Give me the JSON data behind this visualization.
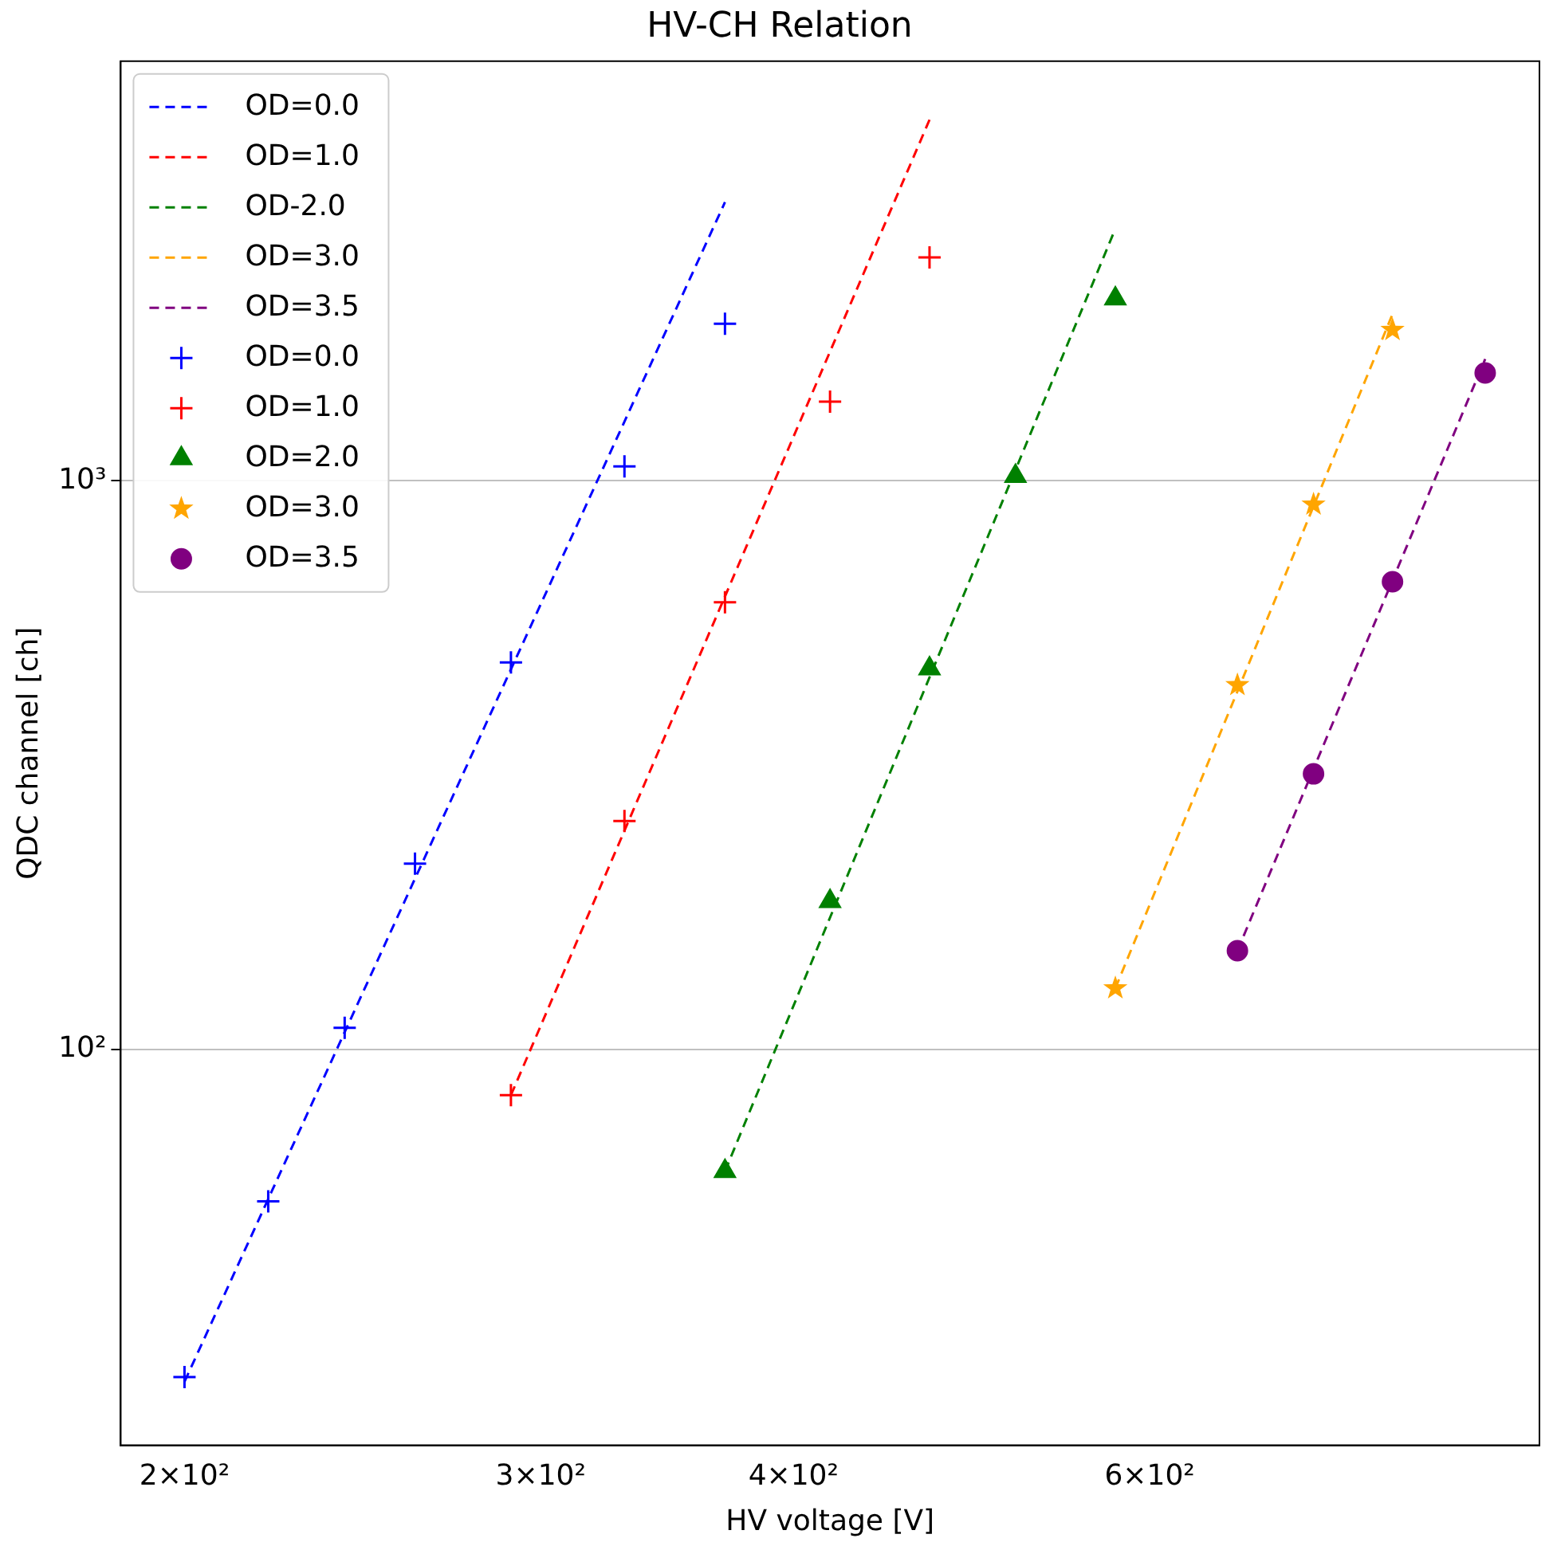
{
  "chart_data": {
    "type": "scatter",
    "title": "HV-CH Relation",
    "xlabel": "HV voltage [V]",
    "ylabel": "QDC channel [ch]",
    "log": "xy",
    "xlim": [
      186,
      935
    ],
    "ylim": [
      20.1,
      5470
    ],
    "xticks": [
      {
        "value": 200,
        "label": "2×10²"
      },
      {
        "value": 300,
        "label": "3×10²"
      },
      {
        "value": 400,
        "label": "4×10²"
      },
      {
        "value": 600,
        "label": "6×10²"
      }
    ],
    "yticks": [
      {
        "value": 100,
        "label": "10²"
      },
      {
        "value": 1000,
        "label": "10³"
      }
    ],
    "grid": "y",
    "legend": "top left",
    "series": [
      {
        "type": "line",
        "name": "OD=0.0",
        "color": "#0000ff",
        "line_style": "dashed",
        "marker": "none",
        "x": [
          200,
          370
        ],
        "values": [
          26,
          3090
        ]
      },
      {
        "type": "line",
        "name": "OD=1.0",
        "color": "#ff0000",
        "line_style": "dashed",
        "marker": "none",
        "x": [
          290,
          467
        ],
        "values": [
          83,
          4315
        ]
      },
      {
        "type": "line",
        "name": "OD-2.0",
        "color": "#008000",
        "line_style": "dashed",
        "marker": "none",
        "x": [
          370,
          577
        ],
        "values": [
          61,
          2775
        ]
      },
      {
        "type": "line",
        "name": "OD=3.0",
        "color": "#ffa500",
        "line_style": "dashed",
        "marker": "none",
        "x": [
          577,
          791
        ],
        "values": [
          128,
          1963
        ]
      },
      {
        "type": "line",
        "name": "OD=3.5",
        "color": "#800080",
        "line_style": "dashed",
        "marker": "none",
        "x": [
          663,
          879
        ],
        "values": [
          149,
          1637
        ]
      },
      {
        "name": "OD=0.0",
        "color": "#0000ff",
        "marker": "cross",
        "x": [
          200,
          220,
          240,
          260,
          290,
          330,
          370
        ],
        "values": [
          26.5,
          54,
          109,
          212,
          479,
          1060,
          1888
        ]
      },
      {
        "name": "OD=1.0",
        "color": "#ff0000",
        "marker": "cross",
        "x": [
          290,
          330,
          370,
          417,
          467
        ],
        "values": [
          83,
          252,
          611,
          1378,
          2470
        ]
      },
      {
        "name": "OD=2.0",
        "color": "#008000",
        "marker": "triangle",
        "x": [
          370,
          417,
          467,
          515,
          577
        ],
        "values": [
          61,
          182,
          467,
          1019,
          2090
        ]
      },
      {
        "name": "OD=3.0",
        "color": "#ffa500",
        "marker": "star",
        "x": [
          577,
          663,
          723,
          791
        ],
        "values": [
          128,
          437,
          908,
          1842
        ]
      },
      {
        "name": "OD=3.5",
        "color": "#800080",
        "marker": "circle",
        "x": [
          663,
          723,
          791,
          879
        ],
        "values": [
          149,
          305,
          664,
          1547
        ]
      }
    ]
  }
}
